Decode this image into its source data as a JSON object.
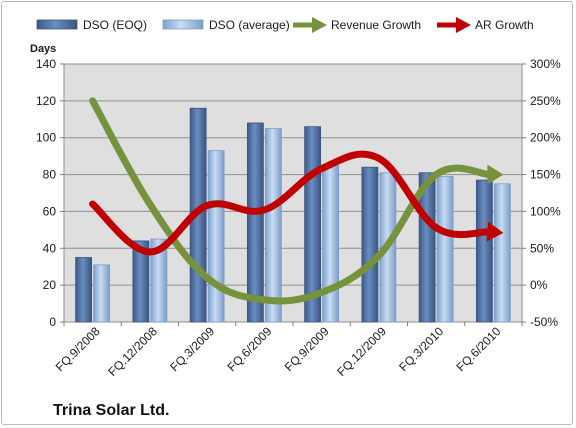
{
  "chart_data": {
    "type": "bar",
    "categories": [
      "FQ.9/2008",
      "FQ.12/2008",
      "FQ.3/2009",
      "FQ.6/2009",
      "FQ.9/2009",
      "FQ.12/2009",
      "FQ.3/2010",
      "FQ.6/2010"
    ],
    "series": [
      {
        "name": "DSO (EOQ)",
        "type": "bar",
        "axis": "left",
        "color": "#4f6f9f",
        "values": [
          35,
          44,
          116,
          108,
          106,
          84,
          81,
          77
        ]
      },
      {
        "name": "DSO (average)",
        "type": "bar",
        "axis": "left",
        "color": "#9cbbe0",
        "values": [
          31,
          45,
          93,
          105,
          85,
          81,
          79,
          75
        ]
      },
      {
        "name": "Revenue Growth",
        "type": "line",
        "axis": "right",
        "color": "#76923c",
        "values": [
          250,
          110,
          10,
          -20,
          -10,
          40,
          150,
          150
        ]
      },
      {
        "name": "AR Growth",
        "type": "line",
        "axis": "right",
        "color": "#c00000",
        "values": [
          110,
          45,
          108,
          102,
          158,
          172,
          78,
          72
        ]
      }
    ],
    "ylabel": "Days",
    "ylim": [
      0,
      140
    ],
    "yticks": [
      0,
      20,
      40,
      60,
      80,
      100,
      120,
      140
    ],
    "y2lim": [
      -50,
      300
    ],
    "y2ticks": [
      "-50%",
      "0%",
      "50%",
      "100%",
      "150%",
      "200%",
      "250%",
      "300%"
    ],
    "grid": true,
    "legend": "top",
    "plot_background": "#dfdfdf",
    "annotation": "Trina Solar Ltd."
  }
}
